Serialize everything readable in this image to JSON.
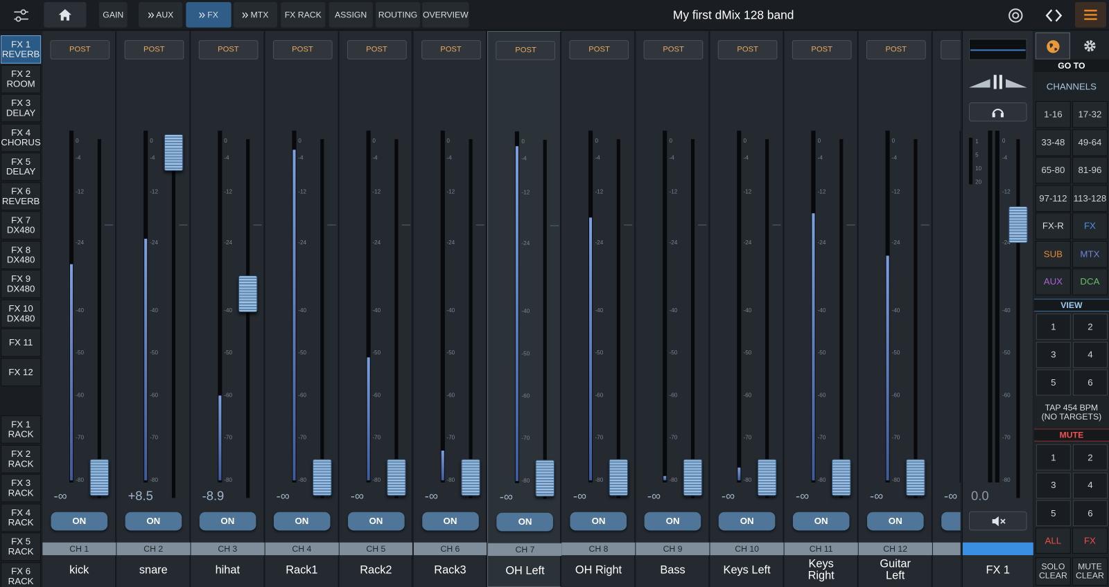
{
  "top_bar": {
    "tabs": [
      "GAIN",
      "AUX",
      "FX",
      "MTX",
      "FX RACK",
      "ASSIGN",
      "ROUTING",
      "OVERVIEW"
    ],
    "title": "My first dMix 128 band"
  },
  "fx_list": {
    "items": [
      [
        "FX 1",
        "REVERB"
      ],
      [
        "FX 2",
        "ROOM"
      ],
      [
        "FX 3",
        "DELAY"
      ],
      [
        "FX 4",
        "CHORUS"
      ],
      [
        "FX 5",
        "DELAY"
      ],
      [
        "FX 6",
        "REVERB"
      ],
      [
        "FX 7",
        "DX480"
      ],
      [
        "FX 8",
        "DX480"
      ],
      [
        "FX 9",
        "DX480"
      ],
      [
        "FX 10",
        "DX480"
      ],
      [
        "FX 11"
      ],
      [
        "FX 12"
      ]
    ],
    "racks": [
      [
        "FX 1",
        "RACK"
      ],
      [
        "FX 2",
        "RACK"
      ],
      [
        "FX 3",
        "RACK"
      ],
      [
        "FX 4",
        "RACK"
      ],
      [
        "FX 5",
        "RACK"
      ],
      [
        "FX 6",
        "RACK"
      ]
    ]
  },
  "meter_scale": [
    0,
    -4,
    -12,
    -24,
    -40,
    -50,
    -60,
    -70,
    -80
  ],
  "channels": [
    {
      "send": "POST",
      "fader_label": "-∞",
      "fader_db": null,
      "meter_db": -29,
      "on": "ON",
      "id": "CH 1",
      "name": [
        "kick"
      ]
    },
    {
      "send": "POST",
      "fader_label": "+8.5",
      "fader_db": 8.5,
      "meter_db": -23,
      "on": "ON",
      "id": "CH 2",
      "name": [
        "snare"
      ]
    },
    {
      "send": "POST",
      "fader_label": "-8.9",
      "fader_db": -8.9,
      "meter_db": -60,
      "on": "ON",
      "id": "CH 3",
      "name": [
        "hihat"
      ]
    },
    {
      "send": "POST",
      "fader_label": "-∞",
      "fader_db": null,
      "meter_db": -2,
      "on": "ON",
      "id": "CH 4",
      "name": [
        "Rack1"
      ]
    },
    {
      "send": "POST",
      "fader_label": "-∞",
      "fader_db": null,
      "meter_db": -51,
      "on": "ON",
      "id": "CH 5",
      "name": [
        "Rack2"
      ]
    },
    {
      "send": "POST",
      "fader_label": "-∞",
      "fader_db": null,
      "meter_db": -73,
      "on": "ON",
      "id": "CH 6",
      "name": [
        "Rack3"
      ]
    },
    {
      "send": "POST",
      "fader_label": "-∞",
      "fader_db": null,
      "meter_db": -1,
      "on": "ON",
      "id": "CH 7",
      "name": [
        "OH Left"
      ]
    },
    {
      "send": "POST",
      "fader_label": "-∞",
      "fader_db": null,
      "meter_db": -18,
      "on": "ON",
      "id": "CH 8",
      "name": [
        "OH Right"
      ]
    },
    {
      "send": "POST",
      "fader_label": "-∞",
      "fader_db": null,
      "meter_db": -79,
      "on": "ON",
      "id": "CH 9",
      "name": [
        "Bass"
      ]
    },
    {
      "send": "POST",
      "fader_label": "-∞",
      "fader_db": null,
      "meter_db": -77,
      "on": "ON",
      "id": "CH 10",
      "name": [
        "Keys Left"
      ]
    },
    {
      "send": "POST",
      "fader_label": "-∞",
      "fader_db": null,
      "meter_db": -17,
      "on": "ON",
      "id": "CH 11",
      "name": [
        "Keys",
        "Right"
      ]
    },
    {
      "send": "POST",
      "fader_label": "-∞",
      "fader_db": null,
      "meter_db": -27,
      "on": "ON",
      "id": "CH 12",
      "name": [
        "Guitar",
        "Left"
      ]
    },
    {
      "send": "P",
      "fader_label": "-∞",
      "fader_db": null,
      "meter_db": -80,
      "on": "ON",
      "id": "C",
      "name": [
        "G",
        "R"
      ]
    }
  ],
  "master": {
    "gr_scale": [
      1,
      5,
      10,
      20
    ],
    "fader_label": "0.0",
    "fader_db": 0,
    "name": "FX 1"
  },
  "right_panel": {
    "goto": "GO TO",
    "channels_label": "CHANNELS",
    "banks": [
      {
        "label": "1-16",
        "color": "#c9d0d7"
      },
      {
        "label": "17-32",
        "color": "#c9d0d7"
      },
      {
        "label": "33-48",
        "color": "#c9d0d7"
      },
      {
        "label": "49-64",
        "color": "#c9d0d7"
      },
      {
        "label": "65-80",
        "color": "#c9d0d7"
      },
      {
        "label": "81-96",
        "color": "#c9d0d7"
      },
      {
        "label": "97-112",
        "color": "#c9d0d7"
      },
      {
        "label": "113-128",
        "color": "#c9d0d7"
      },
      {
        "label": "FX-R",
        "color": "#d6dde4"
      },
      {
        "label": "FX",
        "color": "#4a92e6"
      },
      {
        "label": "SUB",
        "color": "#e08a32"
      },
      {
        "label": "MTX",
        "color": "#6e84dc"
      },
      {
        "label": "AUX",
        "color": "#a862d6"
      },
      {
        "label": "DCA",
        "color": "#62c062"
      }
    ],
    "view": "VIEW",
    "view_buttons": [
      "1",
      "2",
      "3",
      "4",
      "5",
      "6"
    ],
    "tap": [
      "TAP 454 BPM",
      "(NO TARGETS)"
    ],
    "mute": "MUTE",
    "mute_buttons": [
      "1",
      "2",
      "3",
      "4",
      "5",
      "6"
    ],
    "mute_all": "ALL",
    "mute_fx": "FX",
    "solo_clear": [
      "SOLO",
      "CLEAR"
    ],
    "mute_clear": [
      "MUTE",
      "CLEAR"
    ]
  }
}
